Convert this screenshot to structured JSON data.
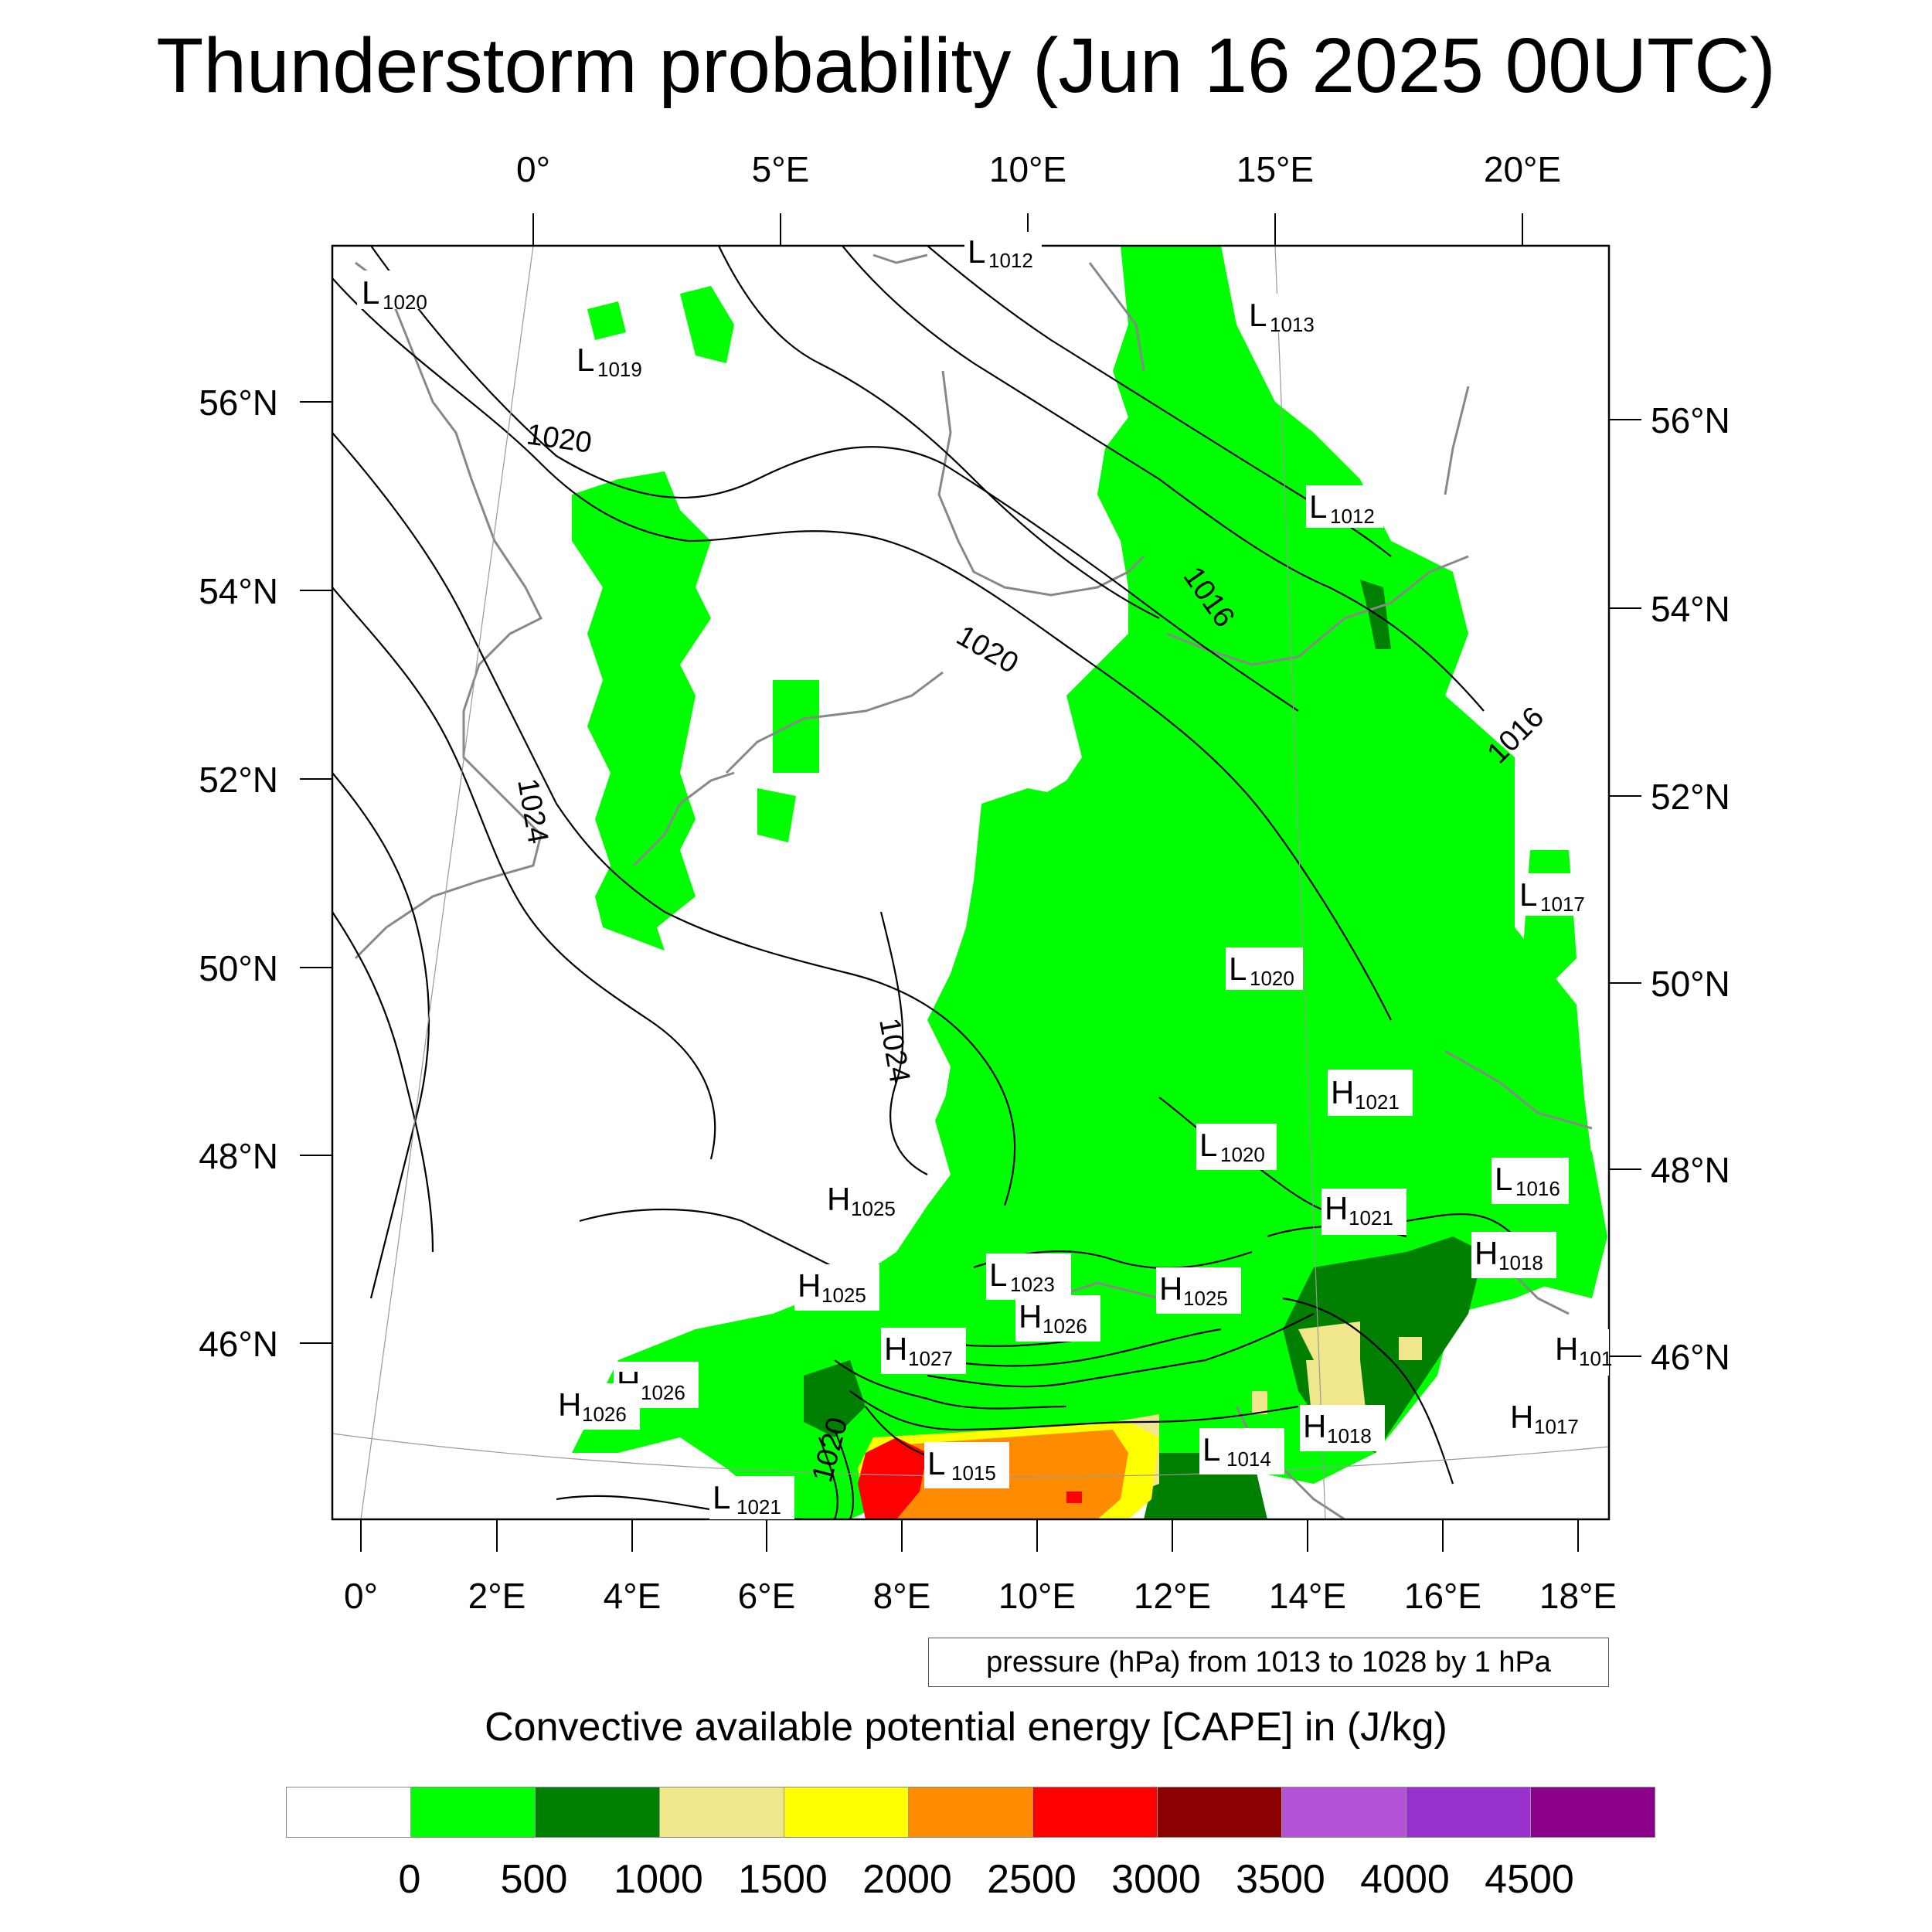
{
  "title": "Thunderstorm probability (Jun 16 2025 00UTC)",
  "map": {
    "top_lon_labels": [
      "0°",
      "5°E",
      "10°E",
      "15°E",
      "20°E"
    ],
    "bottom_lon_labels": [
      "0°",
      "2°E",
      "4°E",
      "6°E",
      "8°E",
      "10°E",
      "12°E",
      "14°E",
      "16°E",
      "18°E"
    ],
    "left_lat_labels": [
      "56°N",
      "54°N",
      "52°N",
      "50°N",
      "48°N",
      "46°N"
    ],
    "right_lat_labels": [
      "56°N",
      "54°N",
      "52°N",
      "50°N",
      "48°N",
      "46°N"
    ],
    "pressure_centers": [
      {
        "letter": "L",
        "value": "1020"
      },
      {
        "letter": "L",
        "value": "1012"
      },
      {
        "letter": "L",
        "value": "1013"
      },
      {
        "letter": "L",
        "value": "1019"
      },
      {
        "letter": "L",
        "value": "1012"
      },
      {
        "letter": "L",
        "value": "1017"
      },
      {
        "letter": "L",
        "value": "1020"
      },
      {
        "letter": "H",
        "value": "1021"
      },
      {
        "letter": "L",
        "value": "1020"
      },
      {
        "letter": "L",
        "value": "1016"
      },
      {
        "letter": "H",
        "value": "1025"
      },
      {
        "letter": "H",
        "value": "1021"
      },
      {
        "letter": "H",
        "value": "1018"
      },
      {
        "letter": "H",
        "value": "1025"
      },
      {
        "letter": "L",
        "value": "1023"
      },
      {
        "letter": "H",
        "value": "1025"
      },
      {
        "letter": "H",
        "value": "1026"
      },
      {
        "letter": "H",
        "value": "1027"
      },
      {
        "letter": "H",
        "value": "1026"
      },
      {
        "letter": "H",
        "value": "1026"
      },
      {
        "letter": "H",
        "value": "101"
      },
      {
        "letter": "H",
        "value": "1017"
      },
      {
        "letter": "H",
        "value": "1018"
      },
      {
        "letter": "L",
        "value": "1014"
      },
      {
        "letter": "L",
        "value": "1015"
      },
      {
        "letter": "L",
        "value": "1021"
      }
    ],
    "isobar_labels": [
      "1020",
      "1020",
      "1016",
      "1016",
      "1024",
      "1024",
      "1020"
    ]
  },
  "contour_info": "pressure (hPa) from 1013 to 1028 by 1 hPa",
  "colorbar": {
    "title": "Convective available potential energy [CAPE] in (J/kg)",
    "labels": [
      "0",
      "500",
      "1000",
      "1500",
      "2000",
      "2500",
      "3000",
      "3500",
      "4000",
      "4500"
    ],
    "colors": [
      "#ffffff",
      "#00ff00",
      "#007f00",
      "#f0e68c",
      "#ffff00",
      "#ff8c00",
      "#ff0000",
      "#8b0000",
      "#b452d6",
      "#9932cc",
      "#8b008b"
    ]
  }
}
